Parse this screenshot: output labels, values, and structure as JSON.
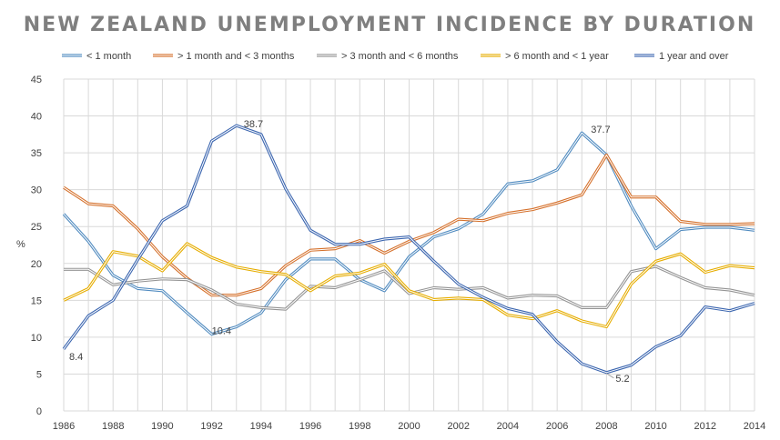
{
  "chart_data": {
    "type": "line",
    "title": "NEW ZEALAND UNEMPLOYMENT INCIDENCE BY DURATION",
    "xlabel": "",
    "ylabel": "%",
    "ylim": [
      0,
      45
    ],
    "xlim": [
      1986,
      2014
    ],
    "yticks": [
      0,
      5,
      10,
      15,
      20,
      25,
      30,
      35,
      40,
      45
    ],
    "xticks": [
      1986,
      1988,
      1990,
      1992,
      1994,
      1996,
      1998,
      2000,
      2002,
      2004,
      2006,
      2008,
      2010,
      2012,
      2014
    ],
    "grid": true,
    "legend_position": "top",
    "x": [
      1986,
      1987,
      1988,
      1989,
      1990,
      1991,
      1992,
      1993,
      1994,
      1995,
      1996,
      1997,
      1998,
      1999,
      2000,
      2001,
      2002,
      2003,
      2004,
      2005,
      2006,
      2007,
      2008,
      2009,
      2010,
      2011,
      2012,
      2013,
      2014
    ],
    "series": [
      {
        "name": "< 1 month",
        "color": "#5b9bd5",
        "values": [
          26.7,
          23.0,
          18.4,
          16.6,
          16.3,
          13.3,
          10.4,
          11.4,
          13.3,
          17.8,
          20.6,
          20.6,
          17.8,
          16.3,
          20.9,
          23.6,
          24.7,
          26.7,
          30.8,
          31.2,
          32.7,
          37.7,
          34.7,
          27.8,
          22.0,
          24.6,
          24.9,
          24.9,
          24.5
        ]
      },
      {
        "name": "> 1 month and < 3 months",
        "color": "#ed7d31",
        "values": [
          30.3,
          28.1,
          27.8,
          24.7,
          20.9,
          18.0,
          15.7,
          15.7,
          16.6,
          19.7,
          21.8,
          22.0,
          23.1,
          21.4,
          23.0,
          24.2,
          26.0,
          25.8,
          26.8,
          27.3,
          28.2,
          29.3,
          34.7,
          29.0,
          29.0,
          25.7,
          25.3,
          25.3,
          25.4
        ]
      },
      {
        "name": "> 3 month and < 6 months",
        "color": "#a5a5a5",
        "values": [
          19.2,
          19.2,
          17.1,
          17.6,
          17.9,
          17.8,
          16.4,
          14.5,
          14.0,
          13.8,
          16.9,
          16.7,
          17.8,
          19.0,
          15.9,
          16.7,
          16.5,
          16.7,
          15.3,
          15.7,
          15.6,
          14.0,
          14.0,
          18.9,
          19.6,
          18.1,
          16.7,
          16.4,
          15.7
        ]
      },
      {
        "name": "> 6 month and < 1 year",
        "color": "#ffc000",
        "values": [
          15.0,
          16.6,
          21.6,
          21.0,
          19.0,
          22.7,
          20.8,
          19.5,
          18.9,
          18.5,
          16.3,
          18.3,
          18.7,
          19.9,
          16.3,
          15.1,
          15.3,
          15.1,
          13.0,
          12.5,
          13.6,
          12.2,
          11.4,
          17.2,
          20.3,
          21.3,
          18.8,
          19.7,
          19.4
        ]
      },
      {
        "name": "1 year and over",
        "color": "#4472c4",
        "values": [
          8.4,
          12.9,
          15.0,
          20.5,
          25.8,
          27.8,
          36.6,
          38.7,
          37.5,
          30.1,
          24.5,
          22.6,
          22.6,
          23.3,
          23.6,
          20.3,
          17.2,
          15.4,
          13.9,
          13.1,
          9.4,
          6.4,
          5.2,
          6.2,
          8.7,
          10.2,
          14.1,
          13.6,
          14.6
        ]
      }
    ],
    "annotations": [
      {
        "text": "38.7",
        "x": 1993,
        "y": 38.7,
        "series": "1 year and over"
      },
      {
        "text": "37.7",
        "x": 2007,
        "y": 37.7,
        "series": "< 1 month"
      },
      {
        "text": "10.4",
        "x": 1992,
        "y": 10.4,
        "series": "< 1 month"
      },
      {
        "text": "8.4",
        "x": 1986,
        "y": 8.4,
        "series": "1 year and over"
      },
      {
        "text": "5.2",
        "x": 2008,
        "y": 5.2,
        "series": "1 year and over"
      }
    ]
  }
}
